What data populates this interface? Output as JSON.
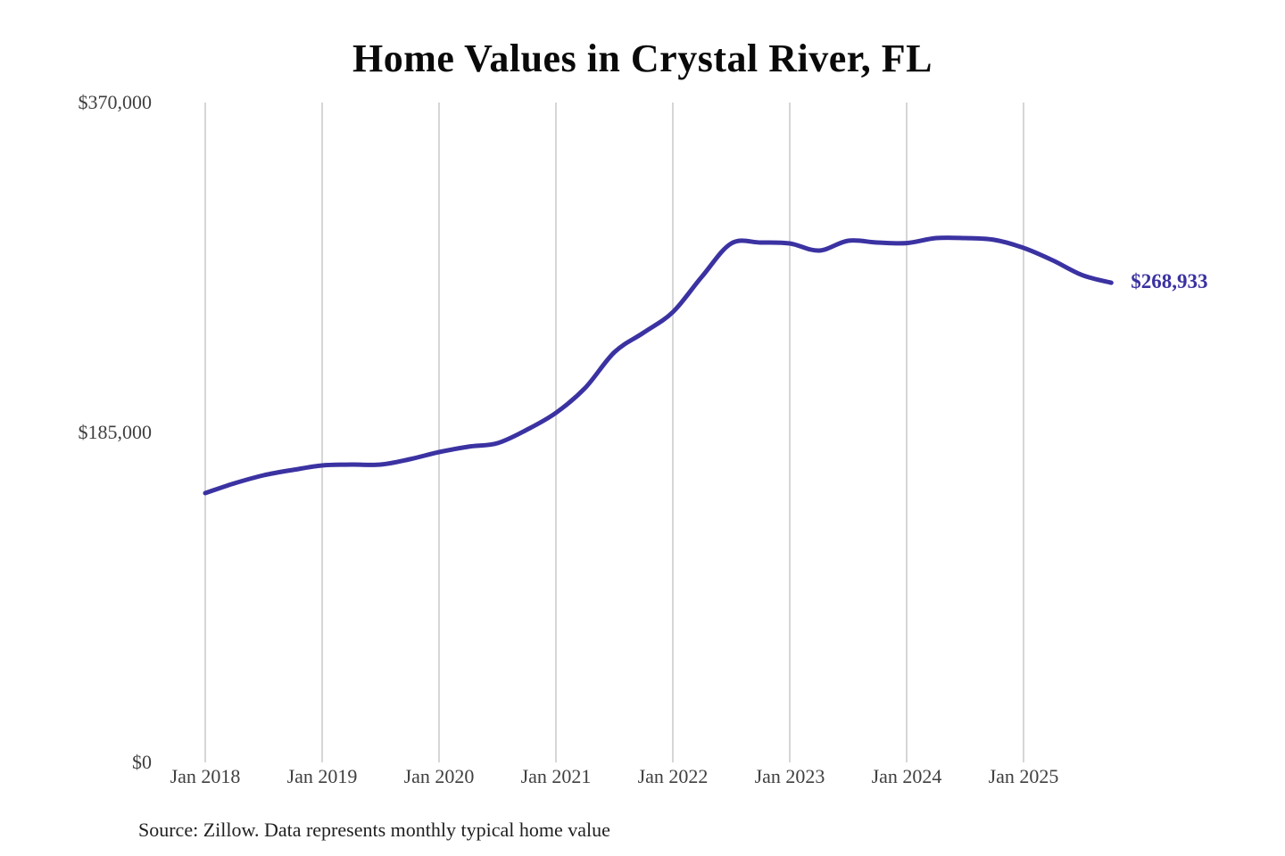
{
  "title": "Home Values in Crystal River, FL",
  "source_note": "Source: Zillow. Data represents monthly typical home value",
  "end_label": "$268,933",
  "colors": {
    "line": "#3b32a2",
    "grid": "#c9c9c9",
    "axis_text": "#3f3f3f",
    "title_text": "#0a0a0a",
    "source_text": "#1f1f1f",
    "background": "#ffffff"
  },
  "chart_data": {
    "type": "line",
    "title": "Home Values in Crystal River, FL",
    "series_name": "Monthly typical home value",
    "xlabel": "",
    "ylabel": "",
    "x": [
      2018.0,
      2018.25,
      2018.5,
      2018.75,
      2019.0,
      2019.25,
      2019.5,
      2019.75,
      2020.0,
      2020.25,
      2020.5,
      2020.75,
      2021.0,
      2021.25,
      2021.5,
      2021.75,
      2022.0,
      2022.25,
      2022.5,
      2022.75,
      2023.0,
      2023.25,
      2023.5,
      2023.75,
      2024.0,
      2024.25,
      2024.5,
      2024.75,
      2025.0,
      2025.25,
      2025.5,
      2025.75
    ],
    "values": [
      151000,
      156500,
      161000,
      164000,
      166500,
      167000,
      167000,
      170000,
      174000,
      177000,
      179000,
      186500,
      196000,
      210000,
      230000,
      241000,
      252500,
      272500,
      291000,
      291500,
      291000,
      287000,
      292500,
      291500,
      291200,
      294000,
      294000,
      293000,
      288500,
      281500,
      273300,
      268933
    ],
    "x_tick_values": [
      2018,
      2019,
      2020,
      2021,
      2022,
      2023,
      2024,
      2025
    ],
    "x_tick_labels": [
      "Jan 2018",
      "Jan 2019",
      "Jan 2020",
      "Jan 2021",
      "Jan 2022",
      "Jan 2023",
      "Jan 2024",
      "Jan 2025"
    ],
    "y_ticks": [
      {
        "value": 0,
        "label": "$0"
      },
      {
        "value": 185000,
        "label": "$185,000"
      },
      {
        "value": 370000,
        "label": "$370,000"
      }
    ],
    "xlim": [
      2018,
      2025.75
    ],
    "ylim": [
      0,
      370000
    ],
    "grid": "vertical",
    "legend": "none",
    "final_value": 268933,
    "final_value_label": "$268,933"
  }
}
